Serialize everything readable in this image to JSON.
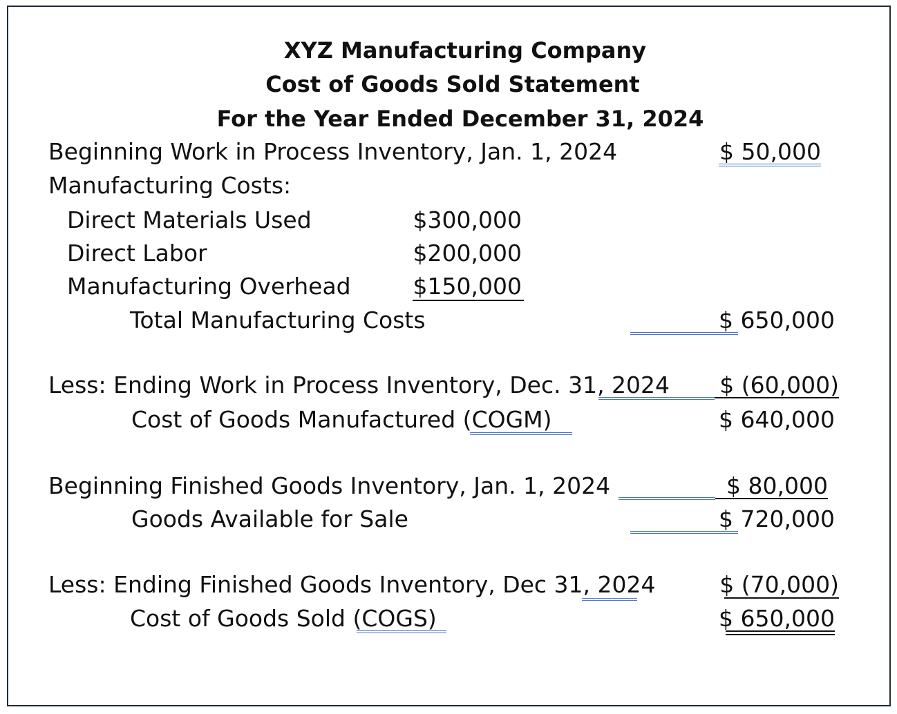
{
  "statement": {
    "company": "XYZ Manufacturing Company",
    "title": "Cost of Goods Sold Statement",
    "period": "For the Year Ended December 31, 2024"
  },
  "rows": {
    "beginning_wip": {
      "label": "Beginning Work in Process Inventory, Jan. 1, 2024",
      "amount": "$ 50,000"
    },
    "manufacturing_costs": {
      "label": "Manufacturing Costs:"
    },
    "direct_materials": {
      "label": "Direct Materials Used",
      "amount": "$300,000"
    },
    "direct_labor": {
      "label": "Direct Labor",
      "amount": "$200,000"
    },
    "overhead": {
      "label": "Manufacturing Overhead",
      "amount": "$150,000"
    },
    "total_mfg": {
      "label": "Total Manufacturing Costs",
      "amount": "$ 650,000"
    },
    "ending_wip": {
      "label_prefix": "Less: Ending Work in Process Inventory, Dec. 31, ",
      "label_year": "2024",
      "amount": "$ (60,000)"
    },
    "cogm": {
      "label_prefix": "Cost of Goods Manufactured (",
      "label_abbr": "COGM)",
      "amount": "$ 640,000"
    },
    "beginning_fg": {
      "label": "Beginning Finished Goods Inventory, Jan. 1, 2024",
      "amount": "$ 80,000"
    },
    "goods_available": {
      "label": "Goods Available for Sale",
      "amount": "$ 720,000"
    },
    "ending_fg": {
      "label_prefix": "Less: Ending Finished Goods Inventory, Dec 31, ",
      "label_year": "2024",
      "amount": "$ (70,000)"
    },
    "cogs": {
      "label_prefix": "Cost of Goods Sold (",
      "label_abbr": "COGS)",
      "amount": "$ 650,000"
    }
  },
  "colors": {
    "frame": "#1f2a38",
    "text": "#111111",
    "proofing_underline": "#4a74c9"
  }
}
